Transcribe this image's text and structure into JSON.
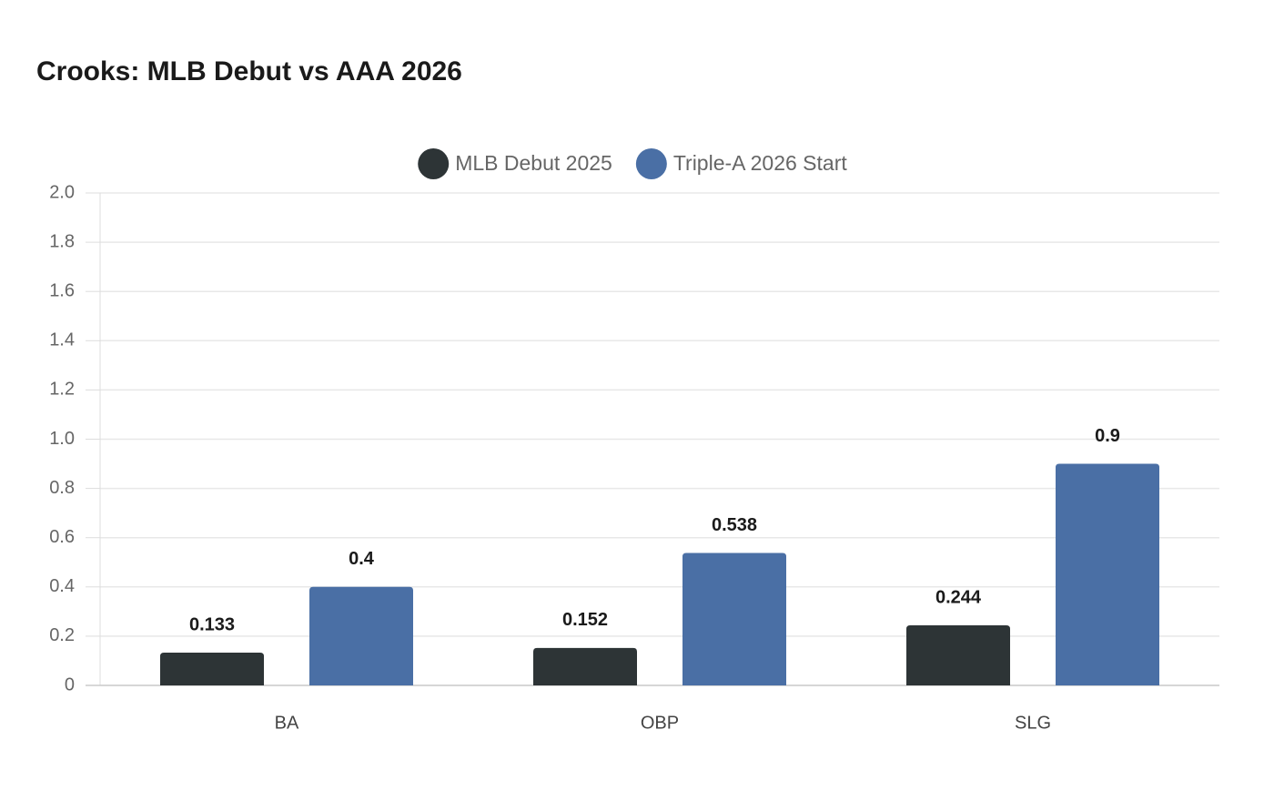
{
  "chart_data": {
    "type": "bar",
    "title": "Crooks: MLB Debut vs AAA 2026",
    "categories": [
      "BA",
      "OBP",
      "SLG"
    ],
    "series": [
      {
        "name": "MLB Debut 2025",
        "color": "#2d3436",
        "values": [
          0.133,
          0.152,
          0.244
        ]
      },
      {
        "name": "Triple-A 2026 Start",
        "color": "#4a6fa5",
        "values": [
          0.4,
          0.538,
          0.9
        ]
      }
    ],
    "ylim": [
      0,
      2
    ],
    "yticks": [
      0,
      0.2,
      0.4,
      0.6,
      0.8,
      {
        "value": 1,
        "label": "1.0"
      },
      1.2,
      1.4,
      1.6,
      1.8,
      {
        "value": 2,
        "label": "2.0"
      }
    ],
    "grid": true,
    "legend": "top"
  }
}
